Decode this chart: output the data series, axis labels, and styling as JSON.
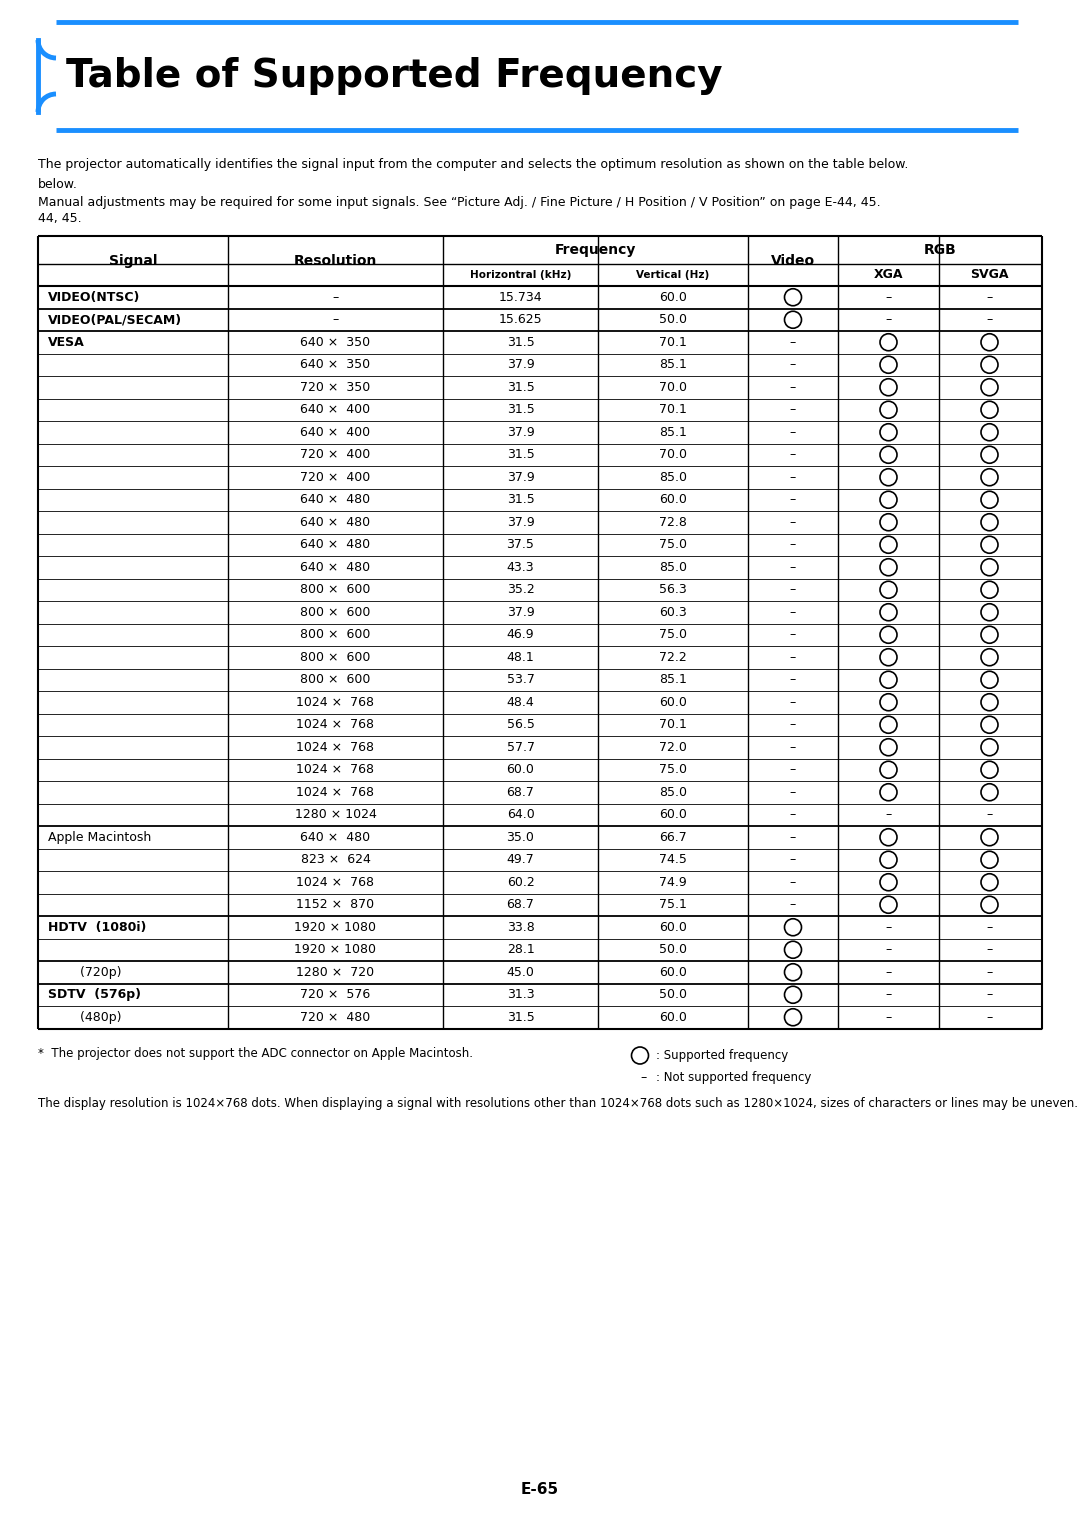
{
  "title": "Table of Supported Frequency",
  "intro_text1": "The projector automatically identifies the signal input from the computer and selects the optimum resolution as shown on the table below.",
  "intro_text2": "Manual adjustments may be required for some input signals. See “Picture Adj. / Fine Picture / H Position / V Position” on page E-44, 45.",
  "footnote1": "*  The projector does not support the ADC connector on Apple Macintosh.",
  "footnote2": "The display resolution is 1024×768 dots. When displaying a signal with resolutions other than 1024×768 dots such as 1280×1024, sizes of characters or lines may be uneven.",
  "legend_circle": ": Supported frequency",
  "legend_dash": ": Not supported frequency",
  "page_number": "E-65",
  "rows": [
    {
      "signal": "VIDEO(NTSC)",
      "resolution": "–",
      "horiz": "15.734",
      "vert": "60.0",
      "video": "O",
      "xga": "–",
      "svga": "–",
      "signal_bold": true,
      "group_start": true
    },
    {
      "signal": "VIDEO(PAL/SECAM)",
      "resolution": "–",
      "horiz": "15.625",
      "vert": "50.0",
      "video": "O",
      "xga": "–",
      "svga": "–",
      "signal_bold": true,
      "group_start": true
    },
    {
      "signal": "VESA",
      "resolution": "640 ×  350",
      "horiz": "31.5",
      "vert": "70.1",
      "video": "–",
      "xga": "O",
      "svga": "O",
      "signal_bold": true,
      "group_start": true
    },
    {
      "signal": "",
      "resolution": "640 ×  350",
      "horiz": "37.9",
      "vert": "85.1",
      "video": "–",
      "xga": "O",
      "svga": "O",
      "group_start": false
    },
    {
      "signal": "",
      "resolution": "720 ×  350",
      "horiz": "31.5",
      "vert": "70.0",
      "video": "–",
      "xga": "O",
      "svga": "O",
      "group_start": false
    },
    {
      "signal": "",
      "resolution": "640 ×  400",
      "horiz": "31.5",
      "vert": "70.1",
      "video": "–",
      "xga": "O",
      "svga": "O",
      "group_start": false
    },
    {
      "signal": "",
      "resolution": "640 ×  400",
      "horiz": "37.9",
      "vert": "85.1",
      "video": "–",
      "xga": "O",
      "svga": "O",
      "group_start": false
    },
    {
      "signal": "",
      "resolution": "720 ×  400",
      "horiz": "31.5",
      "vert": "70.0",
      "video": "–",
      "xga": "O",
      "svga": "O",
      "group_start": false
    },
    {
      "signal": "",
      "resolution": "720 ×  400",
      "horiz": "37.9",
      "vert": "85.0",
      "video": "–",
      "xga": "O",
      "svga": "O",
      "group_start": false
    },
    {
      "signal": "",
      "resolution": "640 ×  480",
      "horiz": "31.5",
      "vert": "60.0",
      "video": "–",
      "xga": "O",
      "svga": "O",
      "group_start": false
    },
    {
      "signal": "",
      "resolution": "640 ×  480",
      "horiz": "37.9",
      "vert": "72.8",
      "video": "–",
      "xga": "O",
      "svga": "O",
      "group_start": false
    },
    {
      "signal": "",
      "resolution": "640 ×  480",
      "horiz": "37.5",
      "vert": "75.0",
      "video": "–",
      "xga": "O",
      "svga": "O",
      "group_start": false
    },
    {
      "signal": "",
      "resolution": "640 ×  480",
      "horiz": "43.3",
      "vert": "85.0",
      "video": "–",
      "xga": "O",
      "svga": "O",
      "group_start": false
    },
    {
      "signal": "",
      "resolution": "800 ×  600",
      "horiz": "35.2",
      "vert": "56.3",
      "video": "–",
      "xga": "O",
      "svga": "O",
      "group_start": false
    },
    {
      "signal": "",
      "resolution": "800 ×  600",
      "horiz": "37.9",
      "vert": "60.3",
      "video": "–",
      "xga": "O",
      "svga": "O",
      "group_start": false
    },
    {
      "signal": "",
      "resolution": "800 ×  600",
      "horiz": "46.9",
      "vert": "75.0",
      "video": "–",
      "xga": "O",
      "svga": "O",
      "group_start": false
    },
    {
      "signal": "",
      "resolution": "800 ×  600",
      "horiz": "48.1",
      "vert": "72.2",
      "video": "–",
      "xga": "O",
      "svga": "O",
      "group_start": false
    },
    {
      "signal": "",
      "resolution": "800 ×  600",
      "horiz": "53.7",
      "vert": "85.1",
      "video": "–",
      "xga": "O",
      "svga": "O",
      "group_start": false
    },
    {
      "signal": "",
      "resolution": "1024 ×  768",
      "horiz": "48.4",
      "vert": "60.0",
      "video": "–",
      "xga": "O",
      "svga": "O",
      "group_start": false
    },
    {
      "signal": "",
      "resolution": "1024 ×  768",
      "horiz": "56.5",
      "vert": "70.1",
      "video": "–",
      "xga": "O",
      "svga": "O",
      "group_start": false
    },
    {
      "signal": "",
      "resolution": "1024 ×  768",
      "horiz": "57.7",
      "vert": "72.0",
      "video": "–",
      "xga": "O",
      "svga": "O",
      "group_start": false
    },
    {
      "signal": "",
      "resolution": "1024 ×  768",
      "horiz": "60.0",
      "vert": "75.0",
      "video": "–",
      "xga": "O",
      "svga": "O",
      "group_start": false
    },
    {
      "signal": "",
      "resolution": "1024 ×  768",
      "horiz": "68.7",
      "vert": "85.0",
      "video": "–",
      "xga": "O",
      "svga": "O",
      "group_start": false
    },
    {
      "signal": "",
      "resolution": "1280 × 1024",
      "horiz": "64.0",
      "vert": "60.0",
      "video": "–",
      "xga": "–",
      "svga": "–",
      "group_start": false
    },
    {
      "signal": "Apple Macintosh",
      "resolution": "640 ×  480",
      "horiz": "35.0",
      "vert": "66.7",
      "video": "–",
      "xga": "O",
      "svga": "O",
      "signal_bold": false,
      "group_start": true
    },
    {
      "signal": "",
      "resolution": "823 ×  624",
      "horiz": "49.7",
      "vert": "74.5",
      "video": "–",
      "xga": "O",
      "svga": "O",
      "group_start": false
    },
    {
      "signal": "",
      "resolution": "1024 ×  768",
      "horiz": "60.2",
      "vert": "74.9",
      "video": "–",
      "xga": "O",
      "svga": "O",
      "group_start": false
    },
    {
      "signal": "",
      "resolution": "1152 ×  870",
      "horiz": "68.7",
      "vert": "75.1",
      "video": "–",
      "xga": "O",
      "svga": "O",
      "group_start": false
    },
    {
      "signal": "HDTV  (1080i)",
      "resolution": "1920 × 1080",
      "horiz": "33.8",
      "vert": "60.0",
      "video": "O",
      "xga": "–",
      "svga": "–",
      "signal_bold": true,
      "group_start": true
    },
    {
      "signal": "",
      "resolution": "1920 × 1080",
      "horiz": "28.1",
      "vert": "50.0",
      "video": "O",
      "xga": "–",
      "svga": "–",
      "group_start": false
    },
    {
      "signal": "        (720p)",
      "resolution": "1280 ×  720",
      "horiz": "45.0",
      "vert": "60.0",
      "video": "O",
      "xga": "–",
      "svga": "–",
      "signal_bold": false,
      "group_start": true
    },
    {
      "signal": "SDTV  (576p)",
      "resolution": "720 ×  576",
      "horiz": "31.3",
      "vert": "50.0",
      "video": "O",
      "xga": "–",
      "svga": "–",
      "signal_bold": true,
      "group_start": true
    },
    {
      "signal": "        (480p)",
      "resolution": "720 ×  480",
      "horiz": "31.5",
      "vert": "60.0",
      "video": "O",
      "xga": "–",
      "svga": "–",
      "signal_bold": false,
      "group_start": false
    }
  ],
  "bg_color": "#ffffff",
  "blue_color": "#1a8fff"
}
